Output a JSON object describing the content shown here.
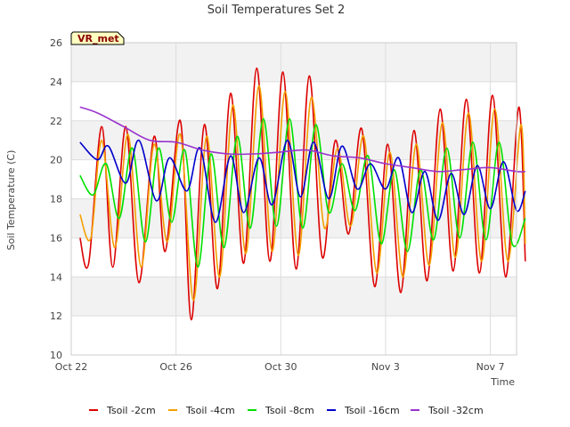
{
  "chart_data": {
    "type": "line",
    "title": "Soil Temperatures Set 2",
    "xlabel": "Time",
    "ylabel": "Soil Temperature (C)",
    "badge": "VR_met",
    "x_start": "Oct 22",
    "x_end": "Nov 8",
    "x_tick_labels": [
      "Oct 22",
      "Oct 26",
      "Oct 30",
      "Nov 3",
      "Nov 7"
    ],
    "x_tick_days": [
      0,
      4,
      8,
      12,
      16
    ],
    "ylim": [
      10,
      26
    ],
    "y_ticks": [
      10,
      12,
      14,
      16,
      18,
      20,
      22,
      24,
      26
    ],
    "grid": true,
    "banded_background": true,
    "legend_position": "bottom",
    "series": [
      {
        "name": "Tsoil -2cm",
        "color": "#dd0000",
        "x": [
          "Oct 22 08:00",
          "Oct 22 16:00",
          "Oct 23 04:00",
          "Oct 23 14:00",
          "Oct 24 02:00",
          "Oct 24 14:00",
          "Oct 25 04:00",
          "Oct 25 14:00",
          "Oct 26 04:00",
          "Oct 26 14:00",
          "Oct 27 02:00",
          "Oct 27 14:00",
          "Oct 28 02:00",
          "Oct 28 14:00",
          "Oct 29 02:00",
          "Oct 29 14:00",
          "Oct 30 02:00",
          "Oct 30 14:00",
          "Oct 31 02:00",
          "Oct 31 14:00",
          "Nov 1 02:00",
          "Nov 1 14:00",
          "Nov 2 02:00",
          "Nov 2 14:00",
          "Nov 3 02:00",
          "Nov 3 14:00",
          "Nov 4 02:00",
          "Nov 4 14:00",
          "Nov 5 02:00",
          "Nov 5 14:00",
          "Nov 6 02:00",
          "Nov 6 14:00",
          "Nov 7 02:00",
          "Nov 7 14:00",
          "Nov 8 02:00",
          "Nov 8 08:00"
        ],
        "values": [
          16.0,
          14.7,
          21.7,
          14.5,
          21.7,
          13.7,
          21.2,
          15.3,
          22.0,
          11.8,
          21.8,
          13.4,
          23.4,
          14.7,
          24.7,
          14.8,
          24.5,
          14.4,
          24.3,
          15.0,
          21.0,
          16.2,
          21.6,
          13.5,
          20.8,
          13.2,
          21.5,
          13.8,
          22.6,
          14.3,
          23.1,
          14.2,
          23.3,
          14.0,
          22.7,
          14.8
        ]
      },
      {
        "name": "Tsoil -4cm",
        "color": "#f5a000",
        "x": [
          "Oct 22 08:00",
          "Oct 22 18:00",
          "Oct 23 04:00",
          "Oct 23 16:00",
          "Oct 24 04:00",
          "Oct 24 16:00",
          "Oct 25 04:00",
          "Oct 25 16:00",
          "Oct 26 04:00",
          "Oct 26 16:00",
          "Oct 27 04:00",
          "Oct 27 16:00",
          "Oct 28 04:00",
          "Oct 28 16:00",
          "Oct 29 04:00",
          "Oct 29 16:00",
          "Oct 30 04:00",
          "Oct 30 16:00",
          "Oct 31 04:00",
          "Oct 31 16:00",
          "Nov 1 04:00",
          "Nov 1 16:00",
          "Nov 2 04:00",
          "Nov 2 16:00",
          "Nov 3 04:00",
          "Nov 3 16:00",
          "Nov 4 04:00",
          "Nov 4 16:00",
          "Nov 5 04:00",
          "Nov 5 16:00",
          "Nov 6 04:00",
          "Nov 6 16:00",
          "Nov 7 04:00",
          "Nov 7 16:00",
          "Nov 8 04:00",
          "Nov 8 08:00"
        ],
        "values": [
          17.2,
          16.0,
          21.0,
          15.5,
          21.3,
          14.5,
          20.8,
          15.8,
          21.3,
          12.8,
          21.2,
          14.0,
          22.8,
          15.2,
          23.8,
          15.3,
          23.5,
          15.1,
          23.2,
          16.5,
          20.6,
          16.6,
          21.2,
          14.2,
          20.4,
          14.0,
          20.8,
          14.6,
          21.9,
          15.0,
          22.4,
          14.8,
          22.6,
          14.8,
          21.8,
          15.7
        ]
      },
      {
        "name": "Tsoil -8cm",
        "color": "#00e000",
        "x": [
          "Oct 22 08:00",
          "Oct 22 20:00",
          "Oct 23 08:00",
          "Oct 23 20:00",
          "Oct 24 08:00",
          "Oct 24 20:00",
          "Oct 25 08:00",
          "Oct 25 20:00",
          "Oct 26 08:00",
          "Oct 26 20:00",
          "Oct 27 08:00",
          "Oct 27 20:00",
          "Oct 28 08:00",
          "Oct 28 20:00",
          "Oct 29 08:00",
          "Oct 29 20:00",
          "Oct 30 08:00",
          "Oct 30 20:00",
          "Oct 31 08:00",
          "Oct 31 20:00",
          "Nov 1 08:00",
          "Nov 1 20:00",
          "Nov 2 08:00",
          "Nov 2 20:00",
          "Nov 3 08:00",
          "Nov 3 20:00",
          "Nov 4 08:00",
          "Nov 4 20:00",
          "Nov 5 08:00",
          "Nov 5 20:00",
          "Nov 6 08:00",
          "Nov 6 20:00",
          "Nov 7 08:00",
          "Nov 7 20:00",
          "Nov 8 08:00"
        ],
        "values": [
          19.2,
          18.2,
          19.8,
          17.0,
          20.6,
          15.8,
          20.6,
          16.8,
          20.5,
          14.5,
          20.3,
          15.5,
          21.2,
          16.5,
          22.1,
          16.6,
          22.1,
          16.5,
          21.8,
          17.3,
          19.8,
          17.4,
          20.2,
          15.7,
          19.5,
          15.3,
          19.5,
          15.9,
          20.6,
          16.0,
          20.9,
          15.9,
          20.9,
          15.7,
          17.0
        ]
      },
      {
        "name": "Tsoil -16cm",
        "color": "#0000cc",
        "x": [
          "Oct 22 08:00",
          "Oct 23 00:00",
          "Oct 23 10:00",
          "Oct 24 02:00",
          "Oct 24 14:00",
          "Oct 25 06:00",
          "Oct 25 18:00",
          "Oct 26 10:00",
          "Oct 26 22:00",
          "Oct 27 12:00",
          "Oct 28 02:00",
          "Oct 28 14:00",
          "Oct 29 04:00",
          "Oct 29 16:00",
          "Oct 30 06:00",
          "Oct 30 18:00",
          "Oct 31 06:00",
          "Oct 31 20:00",
          "Nov 1 08:00",
          "Nov 1 22:00",
          "Nov 2 10:00",
          "Nov 3 00:00",
          "Nov 3 12:00",
          "Nov 4 00:00",
          "Nov 4 12:00",
          "Nov 5 00:00",
          "Nov 5 12:00",
          "Nov 6 00:00",
          "Nov 6 12:00",
          "Nov 7 00:00",
          "Nov 7 12:00",
          "Nov 8 00:00",
          "Nov 8 08:00"
        ],
        "values": [
          20.9,
          20.0,
          20.7,
          18.8,
          21.0,
          17.9,
          20.1,
          18.4,
          20.6,
          16.8,
          20.2,
          17.3,
          20.1,
          17.7,
          21.0,
          18.1,
          20.9,
          18.0,
          20.7,
          18.5,
          19.8,
          18.5,
          20.1,
          17.3,
          19.4,
          16.9,
          19.3,
          17.2,
          19.7,
          17.5,
          19.9,
          17.4,
          18.4
        ]
      },
      {
        "name": "Tsoil -32cm",
        "color": "#9933cc",
        "x": [
          "Oct 22 08:00",
          "Oct 23 00:00",
          "Oct 24 00:00",
          "Oct 25 00:00",
          "Oct 26 00:00",
          "Oct 27 00:00",
          "Oct 28 00:00",
          "Oct 29 00:00",
          "Oct 30 00:00",
          "Oct 31 00:00",
          "Nov 1 00:00",
          "Nov 2 00:00",
          "Nov 3 00:00",
          "Nov 4 00:00",
          "Nov 5 00:00",
          "Nov 6 00:00",
          "Nov 7 00:00",
          "Nov 8 00:00",
          "Nov 8 08:00"
        ],
        "values": [
          22.7,
          22.4,
          21.7,
          21.0,
          20.9,
          20.5,
          20.3,
          20.3,
          20.4,
          20.5,
          20.2,
          20.1,
          19.8,
          19.6,
          19.4,
          19.5,
          19.6,
          19.4,
          19.4
        ]
      }
    ]
  }
}
